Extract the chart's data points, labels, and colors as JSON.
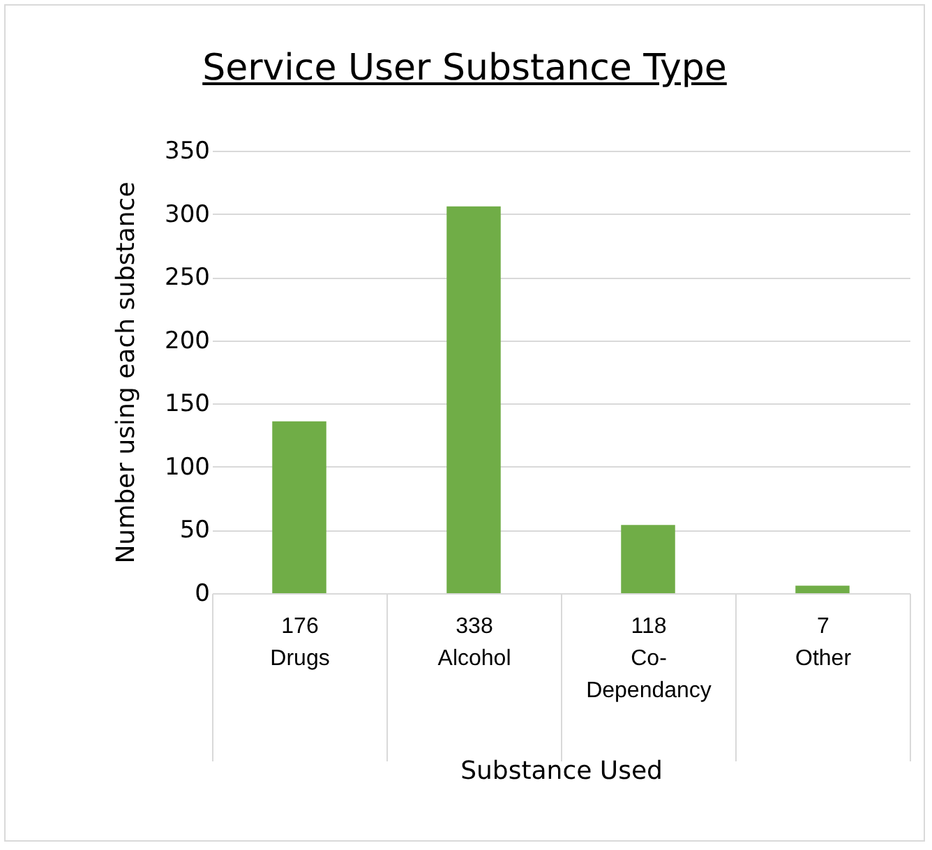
{
  "chart_data": {
    "type": "bar",
    "title": "Service User Substance Type",
    "xlabel": "Substance Used",
    "ylabel": "Number using each substance",
    "categories": [
      "Drugs",
      "Alcohol",
      "Co-Dependancy",
      "Other"
    ],
    "values": [
      136,
      306,
      54,
      6
    ],
    "color": "#70ad47",
    "annotations": [
      "176",
      "338",
      "118",
      "7"
    ],
    "ylim": [
      0,
      350
    ],
    "yticks": [
      0,
      50,
      100,
      150,
      200,
      250,
      300,
      350
    ],
    "grid": "y"
  }
}
